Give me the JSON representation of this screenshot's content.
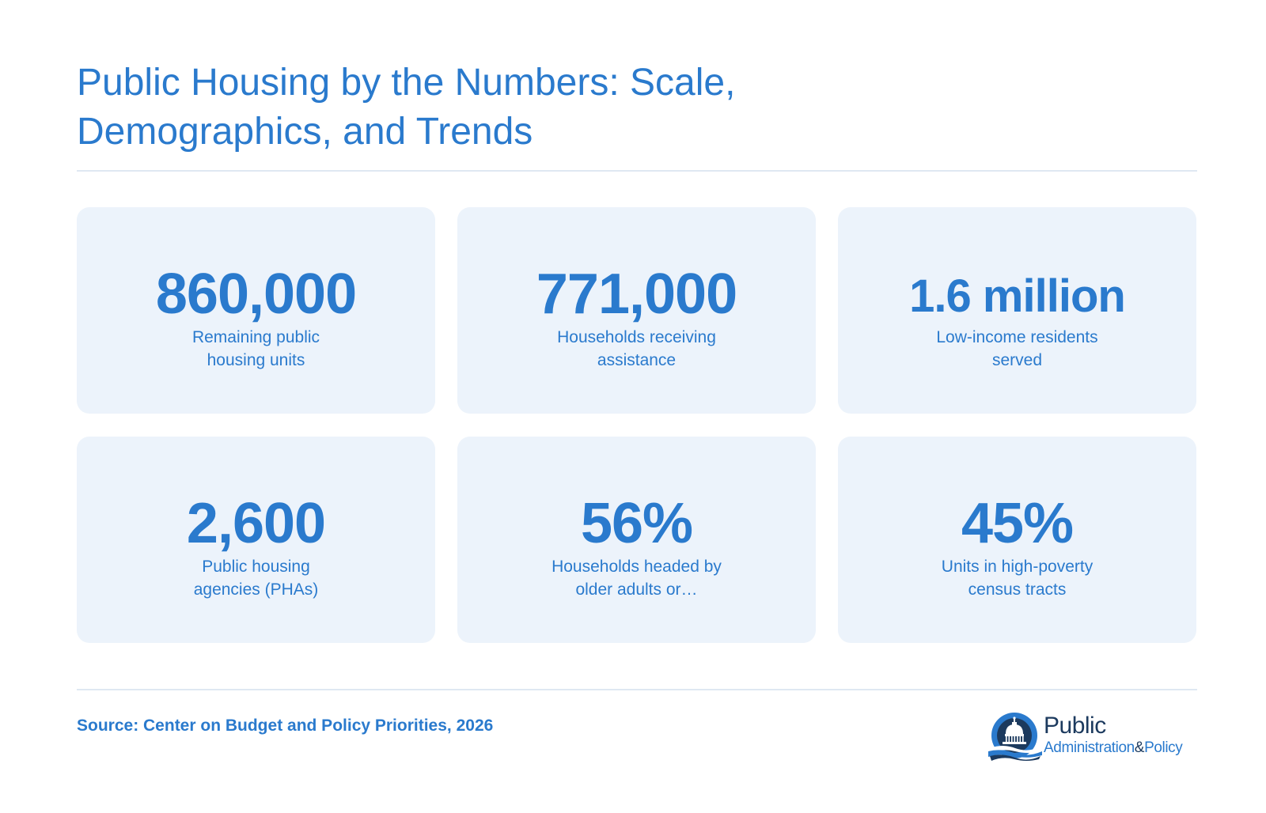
{
  "title": {
    "line1": "Public Housing by the Numbers: Scale,",
    "line2": "Demographics, and Trends"
  },
  "stats": [
    {
      "value": "860,000",
      "label_line1": "Remaining public",
      "label_line2": "housing units"
    },
    {
      "value": "771,000",
      "label_line1": "Households receiving",
      "label_line2": "assistance"
    },
    {
      "value": "1.6 million",
      "label_line1": "Low-income residents",
      "label_line2": "served"
    },
    {
      "value": "2,600",
      "label_line1": "Public housing",
      "label_line2": "agencies (PHAs)"
    },
    {
      "value": "56%",
      "label_line1": "Households headed by",
      "label_line2": "older adults or…"
    },
    {
      "value": "45%",
      "label_line1": "Units in high-poverty",
      "label_line2": "census tracts"
    }
  ],
  "source": "Source: Center on Budget and Policy Priorities, 2026",
  "logo": {
    "word1": "Public",
    "word2": "Administration",
    "amp": "&",
    "word3": "Policy"
  },
  "colors": {
    "accent": "#2a7acd",
    "card_bg": "#ecf3fb",
    "divider": "#dfe8f2",
    "logo_dark": "#1c3a5e"
  }
}
